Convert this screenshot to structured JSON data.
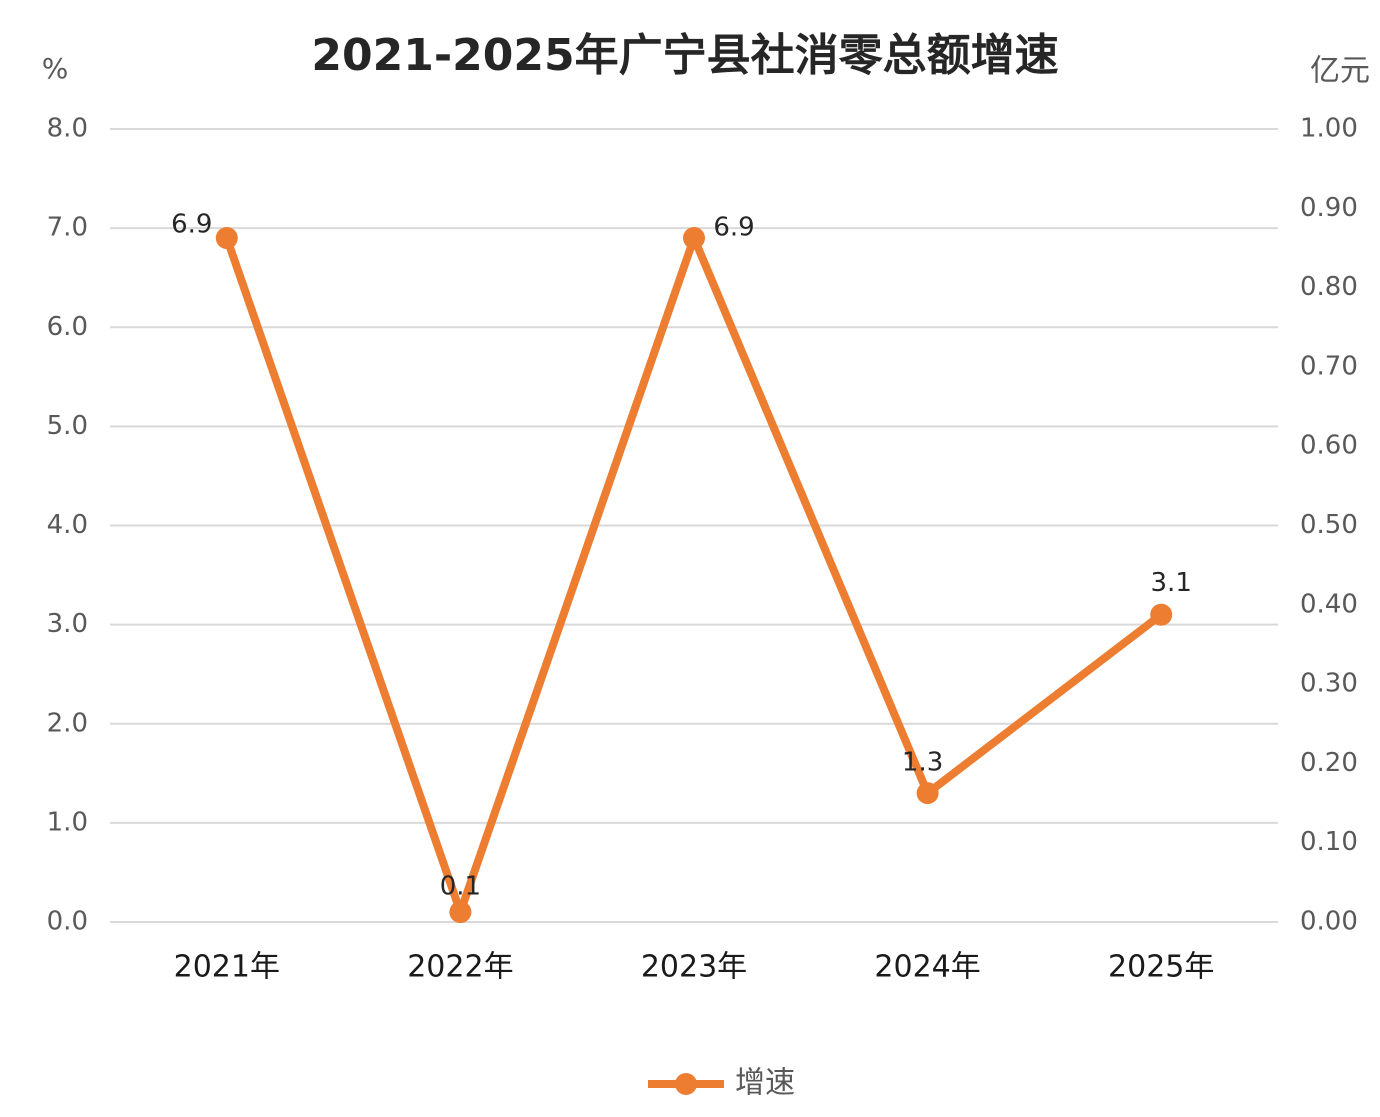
{
  "chart_data": {
    "type": "line",
    "title": "2021-2025年广宁县社消零总额增速",
    "y_unit": "%",
    "y2_unit": "亿元",
    "categories": [
      "2021年",
      "2022年",
      "2023年",
      "2024年",
      "2025年"
    ],
    "series": [
      {
        "name": "增速",
        "color": "#ed7d31",
        "values": [
          6.9,
          0.1,
          6.9,
          1.3,
          3.1
        ]
      }
    ],
    "ylim": [
      0,
      8
    ],
    "yticks": [
      {
        "value": 0,
        "label": "0.0"
      },
      {
        "value": 1,
        "label": "1.0"
      },
      {
        "value": 2,
        "label": "2.0"
      },
      {
        "value": 3,
        "label": "3.0"
      },
      {
        "value": 4,
        "label": "4.0"
      },
      {
        "value": 5,
        "label": "5.0"
      },
      {
        "value": 6,
        "label": "6.0"
      },
      {
        "value": 7,
        "label": "7.0"
      },
      {
        "value": 8,
        "label": "8.0"
      }
    ],
    "y2lim": [
      0,
      1
    ],
    "y2ticks": [
      {
        "value": 0,
        "label": "0.00"
      },
      {
        "value": 0.1,
        "label": "0.10"
      },
      {
        "value": 0.2,
        "label": "0.20"
      },
      {
        "value": 0.3,
        "label": "0.30"
      },
      {
        "value": 0.4,
        "label": "0.40"
      },
      {
        "value": 0.5,
        "label": "0.50"
      },
      {
        "value": 0.6,
        "label": "0.60"
      },
      {
        "value": 0.7,
        "label": "0.70"
      },
      {
        "value": 0.8,
        "label": "0.80"
      },
      {
        "value": 0.9,
        "label": "0.90"
      },
      {
        "value": 1,
        "label": "1.00"
      }
    ],
    "grid": true,
    "legend": "bottom"
  }
}
